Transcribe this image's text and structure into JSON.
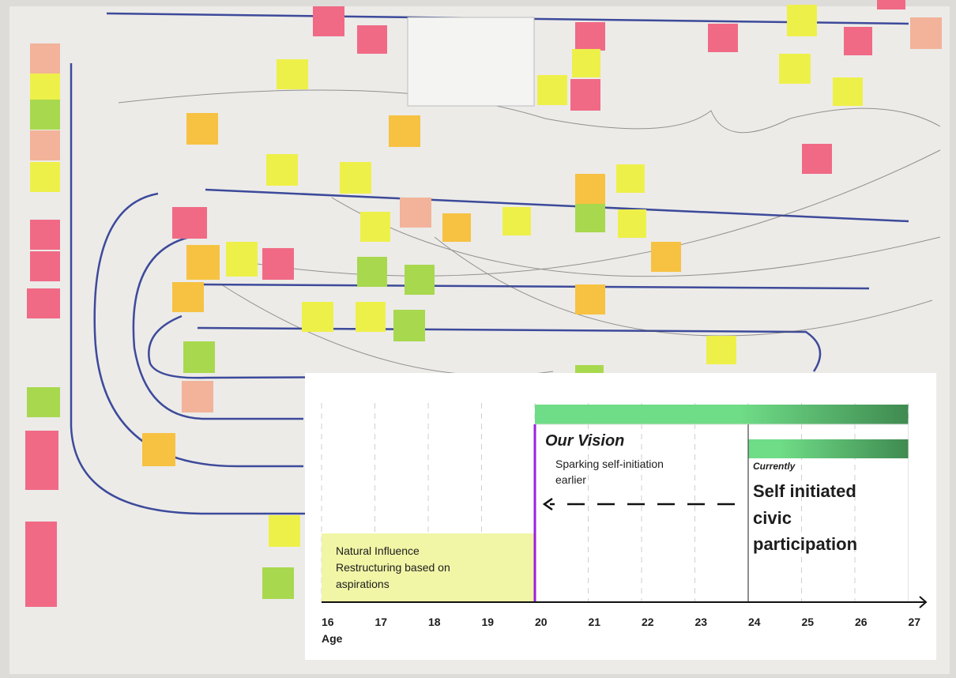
{
  "timeline": {
    "axis_label": "Age",
    "ticks": [
      16,
      17,
      18,
      19,
      20,
      21,
      22,
      23,
      24,
      25,
      26,
      27
    ],
    "natural": {
      "start": 16,
      "end": 20,
      "text": "Natural Influence Restructuring based on aspirations"
    },
    "vision": {
      "start": 20,
      "end": 27,
      "title": "Our Vision",
      "text": "Sparking self-initiation earlier"
    },
    "current": {
      "start": 24,
      "end": 27,
      "label": "Currently",
      "text": "Self initiated civic participation"
    }
  }
}
